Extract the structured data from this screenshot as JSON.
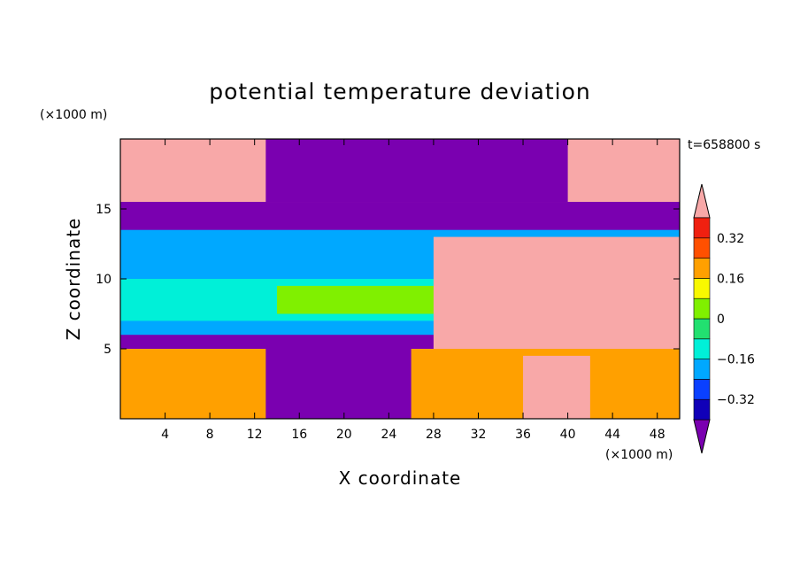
{
  "chart_data": {
    "type": "heatmap",
    "title": "potential temperature deviation",
    "xlabel": "X coordinate",
    "ylabel": "Z coordinate",
    "x_unit": "(×1000 m)",
    "y_unit": "(×1000 m)",
    "time_label": "t=658800 s",
    "xlim": [
      0,
      50
    ],
    "ylim": [
      0,
      20
    ],
    "x_ticks": [
      4,
      8,
      12,
      16,
      20,
      24,
      28,
      32,
      36,
      40,
      44,
      48
    ],
    "y_ticks": [
      5,
      10,
      15
    ],
    "colorbar": {
      "levels": [
        -0.4,
        -0.32,
        -0.24,
        -0.16,
        -0.08,
        0,
        0.08,
        0.16,
        0.24,
        0.32,
        0.4
      ],
      "labeled_levels": [
        0.32,
        0.16,
        0,
        -0.16,
        -0.32
      ],
      "colors": [
        "#7a00b0",
        "#1000b8",
        "#0a40ff",
        "#00a8ff",
        "#00f0d8",
        "#22e070",
        "#80f000",
        "#f8f800",
        "#ffa000",
        "#ff5000",
        "#f02010",
        "#f8a8a8"
      ]
    },
    "field_regions": [
      {
        "level_index": 11,
        "x": [
          0,
          50
        ],
        "y": [
          15.5,
          20
        ]
      },
      {
        "level_index": 0,
        "x": [
          13,
          40
        ],
        "y": [
          15.5,
          20
        ]
      },
      {
        "level_index": 0,
        "x": [
          0,
          50
        ],
        "y": [
          13.5,
          15.5
        ]
      },
      {
        "level_index": 3,
        "x": [
          0,
          50
        ],
        "y": [
          6,
          13.5
        ]
      },
      {
        "level_index": 4,
        "x": [
          0,
          50
        ],
        "y": [
          7,
          10
        ]
      },
      {
        "level_index": 6,
        "x": [
          14,
          34
        ],
        "y": [
          7.5,
          9.5
        ]
      },
      {
        "level_index": 11,
        "x": [
          28,
          50
        ],
        "y": [
          5,
          13
        ]
      },
      {
        "level_index": 0,
        "x": [
          11,
          26
        ],
        "y": [
          0,
          5.5
        ]
      },
      {
        "level_index": 8,
        "x": [
          0,
          13
        ],
        "y": [
          0,
          5
        ]
      },
      {
        "level_index": 8,
        "x": [
          26,
          50
        ],
        "y": [
          0,
          5
        ]
      },
      {
        "level_index": 11,
        "x": [
          36,
          42
        ],
        "y": [
          0,
          4.5
        ]
      }
    ]
  }
}
